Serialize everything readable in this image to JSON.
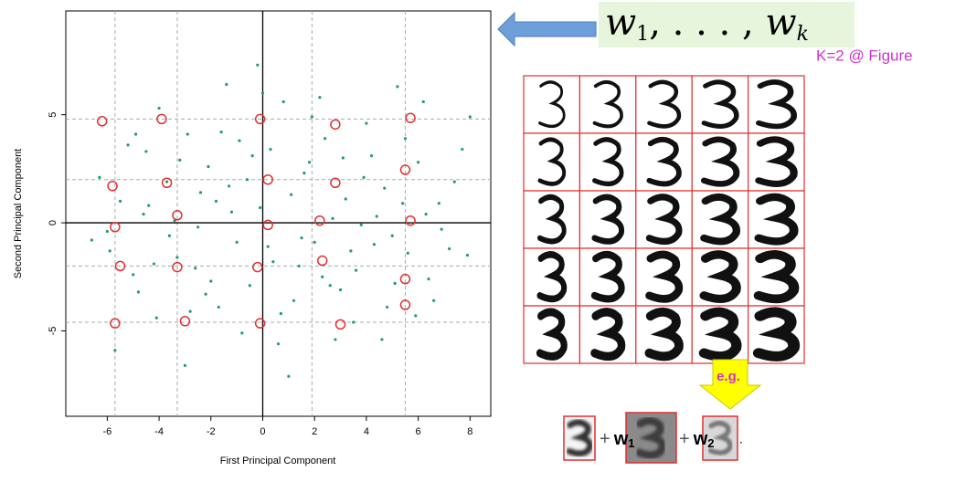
{
  "chart_data": {
    "type": "scatter",
    "xlabel": "First Principal Component",
    "ylabel": "Second Principal Component",
    "xlim": [
      -7.6,
      8.8
    ],
    "ylim": [
      -8.95,
      9.8
    ],
    "xticks": [
      -6,
      -4,
      -2,
      0,
      2,
      4,
      6,
      8
    ],
    "yticks": [
      -5,
      0,
      5
    ],
    "x_guides": [
      -5.7,
      -3.3,
      1.9,
      5.5
    ],
    "y_guides": [
      4.8,
      2.0,
      -2.0,
      -4.6
    ],
    "series": [
      {
        "color": "#1f9a73",
        "marker": "dot",
        "x": [
          -6.3,
          -5.9,
          -5.2,
          -4.8,
          -4.4,
          -4.0,
          -3.6,
          -3.2,
          -2.8,
          -2.4,
          -2.0,
          -1.6,
          -1.2,
          -0.8,
          -0.4,
          0.0,
          0.4,
          0.8,
          1.2,
          1.6,
          2.0,
          2.4,
          2.8,
          3.2,
          3.6,
          4.0,
          4.4,
          4.8,
          5.2,
          5.6,
          6.0,
          6.4,
          6.8,
          7.2,
          7.7,
          -6.0,
          -5.5,
          -5.0,
          -4.5,
          -4.1,
          -3.7,
          -3.3,
          -2.9,
          -2.5,
          -2.1,
          -1.7,
          -1.3,
          -0.9,
          -0.5,
          -0.1,
          0.3,
          0.7,
          1.1,
          1.5,
          1.9,
          2.3,
          2.7,
          3.1,
          3.5,
          3.9,
          4.3,
          4.7,
          5.1,
          5.5,
          5.9,
          6.3,
          6.9,
          7.4,
          8.0,
          -6.6,
          -5.7,
          -4.9,
          -4.2,
          -3.4,
          -2.6,
          -1.8,
          -1.0,
          -0.2,
          0.6,
          1.4,
          2.2,
          3.0,
          3.8,
          4.6,
          5.4,
          6.2,
          -3.0,
          -1.4,
          1.0,
          2.6,
          -4.6,
          -2.2,
          -0.6,
          0.2,
          1.8,
          3.4,
          4.2,
          5.0,
          6.6,
          7.9
        ],
        "values": [
          2.1,
          -1.3,
          3.6,
          -3.2,
          0.8,
          5.3,
          -0.6,
          2.9,
          -4.1,
          1.4,
          -2.7,
          4.2,
          0.5,
          -5.1,
          3.1,
          6.0,
          -1.8,
          5.6,
          -3.6,
          2.3,
          -0.9,
          3.9,
          -5.4,
          1.1,
          -2.2,
          4.6,
          0.3,
          -3.9,
          6.3,
          -1.4,
          2.8,
          -2.6,
          0.9,
          -1.2,
          3.4,
          -0.4,
          1.0,
          -2.4,
          3.3,
          -4.4,
          1.9,
          -1.6,
          4.1,
          -0.2,
          2.6,
          -3.9,
          1.7,
          3.8,
          -2.9,
          0.7,
          3.4,
          -4.2,
          1.3,
          -0.7,
          4.9,
          -2.5,
          0.2,
          3.0,
          -4.6,
          2.1,
          -1.0,
          1.6,
          -2.8,
          3.9,
          -4.3,
          0.4,
          -0.3,
          1.9,
          4.9,
          -0.8,
          -5.9,
          4.1,
          -1.9,
          0.1,
          -2.1,
          1.0,
          -0.9,
          7.3,
          -5.6,
          -2.0,
          5.8,
          -3.1,
          -0.1,
          -5.4,
          0.9,
          5.6,
          -6.6,
          6.4,
          -7.1,
          -2.9,
          0.4,
          -3.3,
          2.0,
          -1.1,
          2.8,
          -1.3,
          3.1,
          -0.6,
          -3.6,
          -1.5
        ]
      },
      {
        "color": "#e03030",
        "marker": "ring",
        "x": [
          -6.2,
          -3.9,
          -0.1,
          2.8,
          5.7,
          -5.8,
          -3.7,
          0.2,
          2.8,
          5.5,
          -3.3,
          -5.7,
          0.2,
          2.2,
          5.7,
          -5.5,
          -3.3,
          -0.2,
          2.3,
          5.5,
          5.5,
          -5.7,
          -3.0,
          -0.1,
          3.0
        ],
        "values": [
          4.7,
          4.8,
          4.8,
          4.55,
          4.85,
          1.7,
          1.85,
          2.0,
          1.85,
          2.45,
          0.35,
          -0.2,
          -0.1,
          0.1,
          0.1,
          -2.0,
          -2.05,
          -2.05,
          -1.75,
          -2.6,
          -3.8,
          -4.65,
          -4.55,
          -4.65,
          -4.7
        ]
      }
    ]
  },
  "formula_top": {
    "var": "w",
    "first_sub": "1",
    "dots": ", . . . , ",
    "last_sub": "k"
  },
  "figure_note": "K=2 @ Figure",
  "arrow_label": "e.g.",
  "terms": [
    {
      "op": "+",
      "var": "w",
      "sub": "1"
    },
    {
      "op": "+",
      "var": "w",
      "sub": "2"
    }
  ],
  "period": "."
}
